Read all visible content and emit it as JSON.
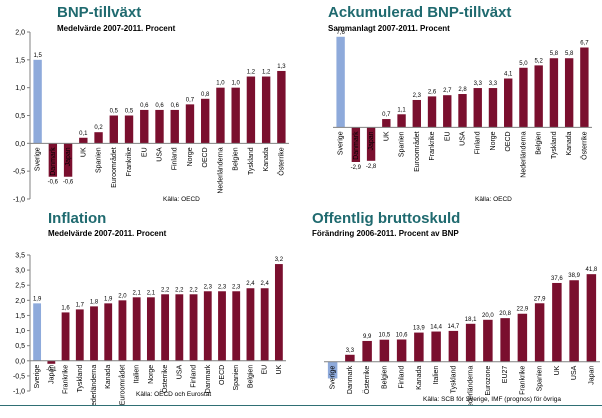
{
  "chart_data": [
    {
      "type": "bar",
      "title": "BNP-tillväxt",
      "subtitle": "Medelvärde 2007-2011. Procent",
      "source": "Källa: OECD",
      "categories": [
        "Sverige",
        "Danmark",
        "Japan",
        "UK",
        "Spanien",
        "Euroområdet",
        "Frankrike",
        "EU",
        "USA",
        "Finland",
        "Norge",
        "OECD",
        "Nederländerna",
        "Belgien",
        "Tyskland",
        "Kanada",
        "Österrike"
      ],
      "values": [
        1.5,
        -0.6,
        -0.6,
        0.1,
        0.2,
        0.5,
        0.5,
        0.6,
        0.6,
        0.6,
        0.7,
        0.8,
        1.0,
        1.0,
        1.2,
        1.2,
        1.3
      ],
      "value_labels": [
        "1,5",
        "-0,6",
        "-0,6",
        "0,1",
        "0,2",
        "0,5",
        "0,5",
        "0,6",
        "0,6",
        "0,6",
        "0,7",
        "0,8",
        "1,0",
        "1,0",
        "1,2",
        "1,2",
        "1,3"
      ],
      "highlight_index": 0,
      "ylim": [
        -1.0,
        2.0
      ],
      "yticks": [
        -1.0,
        -0.5,
        0.0,
        0.5,
        1.0,
        1.5,
        2.0
      ],
      "ytick_labels": [
        "-1,0",
        "-0,5",
        "0,0",
        "0,5",
        "1,0",
        "1,5",
        "2,0"
      ]
    },
    {
      "type": "bar",
      "title": "Ackumulerad BNP-tillväxt",
      "subtitle": "Sammanlagt 2007-2011. Procent",
      "source": "Källa: OECD",
      "categories": [
        "Sverige",
        "Danmark",
        "Japan",
        "UK",
        "Spanien",
        "Euroområdet",
        "Frankrike",
        "EU",
        "USA",
        "Finland",
        "Norge",
        "OECD",
        "Nederländerna",
        "Belgien",
        "Tyskland",
        "Kanada",
        "Österrike"
      ],
      "values": [
        7.6,
        -2.9,
        -2.8,
        0.7,
        1.1,
        2.3,
        2.6,
        2.7,
        2.8,
        3.3,
        3.3,
        4.1,
        5.0,
        5.2,
        5.8,
        5.8,
        6.7
      ],
      "value_labels": [
        "7,6",
        "-2,9",
        "-2,8",
        "0,7",
        "1,1",
        "2,3",
        "2,6",
        "2,7",
        "2,8",
        "3,3",
        "3,3",
        "4,1",
        "5,0",
        "5,2",
        "5,8",
        "5,8",
        "6,7"
      ],
      "highlight_index": 0,
      "ylim": [
        -5.5,
        8.0
      ]
    },
    {
      "type": "bar",
      "title": "Inflation",
      "subtitle": "Medelvärde 2007-2011. Procent",
      "source": "Källa: OECD och Eurostat",
      "categories": [
        "Sverige",
        "Japan",
        "Frankrike",
        "Tyskland",
        "Nederländerna",
        "Kanada",
        "Euroområdet",
        "Italien",
        "Norge",
        "Österrike",
        "USA",
        "Finland",
        "Danmark",
        "OECD",
        "Spanien",
        "Belgien",
        "EU",
        "UK"
      ],
      "values": [
        1.9,
        -0.1,
        1.6,
        1.7,
        1.8,
        1.9,
        2.0,
        2.1,
        2.1,
        2.2,
        2.2,
        2.2,
        2.3,
        2.3,
        2.3,
        2.4,
        2.4,
        3.2
      ],
      "value_labels": [
        "1,9",
        "-0,1",
        "1,6",
        "1,7",
        "1,8",
        "1,9",
        "2,0",
        "2,1",
        "2,1",
        "2,2",
        "2,2",
        "2,2",
        "2,3",
        "2,3",
        "2,3",
        "2,4",
        "2,4",
        "3,2"
      ],
      "highlight_index": 0,
      "ylim": [
        -1.0,
        3.5
      ],
      "yticks": [
        -1.0,
        -0.5,
        0.0,
        0.5,
        1.0,
        1.5,
        2.0,
        2.5,
        3.0,
        3.5
      ],
      "ytick_labels": [
        "-1,0",
        "-0,5",
        "0,0",
        "0,5",
        "1,0",
        "1,5",
        "2,0",
        "2,5",
        "3,0",
        "3,5"
      ]
    },
    {
      "type": "bar",
      "title": "Offentlig bruttoskuld",
      "subtitle": "Förändring 2006-2011. Procent av BNP",
      "source": "Källa: SCB för Sverige, IMF (prognos) för övriga",
      "categories": [
        "Sverige",
        "Danmark",
        "Österrike",
        "Belgien",
        "Finland",
        "Kanada",
        "Italien",
        "Tyskland",
        "Nederländerna",
        "Eurozone",
        "EU27",
        "Frankrike",
        "Spanien",
        "UK",
        "USA",
        "Japan"
      ],
      "values": [
        -8.0,
        3.3,
        9.9,
        10.5,
        10.6,
        13.9,
        14.4,
        14.7,
        18.1,
        20.0,
        20.8,
        22.9,
        27.9,
        37.6,
        38.9,
        41.8
      ],
      "value_labels": [
        "",
        "3,3",
        "9,9",
        "10,5",
        "10,6",
        "13,9",
        "14,4",
        "14,7",
        "18,1",
        "20,0",
        "20,8",
        "22,9",
        "27,9",
        "37,6",
        "38,9",
        "41,8"
      ],
      "highlight_index": 0,
      "ylim": [
        -14.0,
        50.0
      ]
    }
  ],
  "colors": {
    "highlight": "#8eaadb",
    "bar": "#7a0f2e",
    "title": "#1f6a6f",
    "axis": "#808080"
  }
}
